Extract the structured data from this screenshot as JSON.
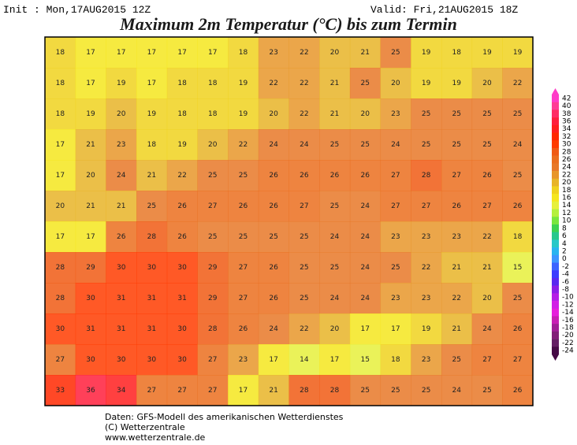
{
  "header": {
    "init": "Init : Mon,17AUG2015 12Z",
    "valid": "Valid: Fri,21AUG2015 18Z",
    "title": "Maximum 2m Temperatur (°C) bis zum Termin"
  },
  "map": {
    "values": [
      [
        18,
        17,
        17,
        17,
        17,
        17,
        18,
        23,
        22,
        20,
        21,
        25,
        19,
        18,
        19,
        19
      ],
      [
        18,
        17,
        19,
        17,
        18,
        18,
        19,
        22,
        22,
        21,
        25,
        20,
        19,
        19,
        20,
        22
      ],
      [
        18,
        19,
        20,
        19,
        18,
        18,
        19,
        20,
        22,
        21,
        20,
        23,
        25,
        25,
        25,
        25
      ],
      [
        17,
        21,
        23,
        18,
        19,
        20,
        22,
        24,
        24,
        25,
        25,
        24,
        25,
        25,
        25,
        24
      ],
      [
        17,
        20,
        24,
        21,
        22,
        25,
        25,
        26,
        26,
        26,
        26,
        27,
        28,
        27,
        26,
        25
      ],
      [
        20,
        21,
        21,
        25,
        26,
        27,
        26,
        26,
        27,
        25,
        24,
        27,
        27,
        26,
        27,
        26
      ],
      [
        17,
        17,
        26,
        28,
        26,
        25,
        25,
        25,
        25,
        24,
        24,
        23,
        23,
        23,
        22,
        18
      ],
      [
        28,
        29,
        30,
        30,
        30,
        29,
        27,
        26,
        25,
        25,
        24,
        25,
        22,
        21,
        21,
        15
      ],
      [
        28,
        30,
        31,
        31,
        31,
        29,
        27,
        26,
        25,
        24,
        24,
        23,
        23,
        22,
        20,
        25
      ],
      [
        30,
        31,
        31,
        31,
        30,
        28,
        26,
        24,
        22,
        20,
        17,
        17,
        19,
        21,
        24,
        26
      ],
      [
        27,
        30,
        30,
        30,
        30,
        27,
        23,
        17,
        14,
        17,
        15,
        18,
        23,
        25,
        27,
        27
      ],
      [
        33,
        36,
        34,
        27,
        27,
        27,
        17,
        21,
        28,
        28,
        25,
        25,
        25,
        24,
        25,
        26
      ]
    ]
  },
  "legend": {
    "labels": [
      42,
      40,
      38,
      36,
      34,
      32,
      30,
      28,
      26,
      24,
      22,
      20,
      18,
      16,
      14,
      12,
      10,
      8,
      6,
      4,
      2,
      0,
      -2,
      -4,
      -6,
      -8,
      -10,
      -12,
      -14,
      -16,
      -18,
      -20,
      -22,
      -24
    ],
    "colors": [
      "#ff3cc8",
      "#ff3c96",
      "#ff2d64",
      "#ff1e3c",
      "#ff1e1e",
      "#ff2800",
      "#ff3c00",
      "#f05a14",
      "#eb6e1e",
      "#e87828",
      "#e8962a",
      "#e8b428",
      "#f0d21e",
      "#f5e61e",
      "#e6f03c",
      "#b4f03c",
      "#78e63c",
      "#3cd250",
      "#28c88c",
      "#28c8c8",
      "#28b4f0",
      "#3c96ff",
      "#3c64ff",
      "#3c3cff",
      "#5a28f0",
      "#8c1ee6",
      "#b41ee6",
      "#d21ee6",
      "#e61edc",
      "#c81eb4",
      "#a01e96",
      "#821e78",
      "#641e64",
      "#460a46"
    ]
  },
  "footer": {
    "lines": [
      "Daten: GFS-Modell des amerikanischen Wetterdienstes",
      "(C) Wetterzentrale",
      "www.wetterzentrale.de"
    ]
  }
}
